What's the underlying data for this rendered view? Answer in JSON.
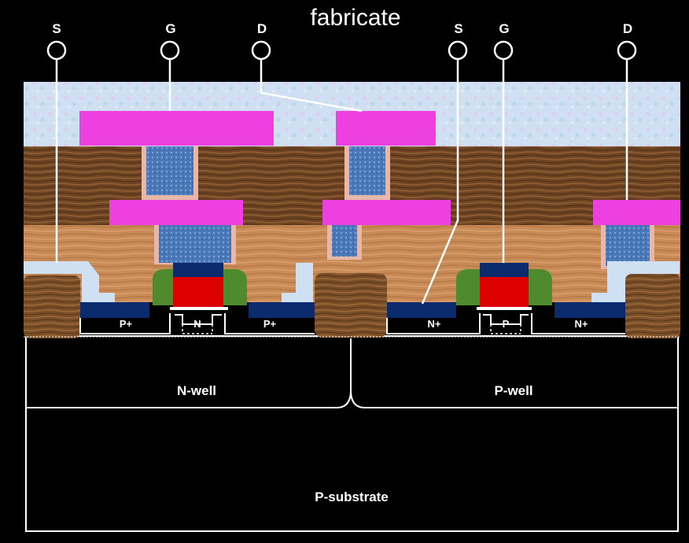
{
  "title": "fabricate",
  "terminals": {
    "left_source": "S",
    "left_gate": "G",
    "left_drain": "D",
    "right_source": "S",
    "right_gate": "G",
    "right_drain": "D"
  },
  "regions": {
    "left_p1": "P+",
    "left_n": "N",
    "left_p2": "P+",
    "right_n1": "N+",
    "right_p": "P",
    "right_n2": "N+"
  },
  "wells": {
    "n_well": "N-well",
    "p_well": "P-well",
    "substrate": "P-substrate"
  },
  "colors": {
    "background": "#000000",
    "metal": "#ee3fe0",
    "via": "#4a78b8",
    "dielectric_top": "#cfe0f2",
    "dielectric_mid": "#6e4423",
    "dielectric_low": "#c88a57",
    "oxide_isolation": "#7a4e28",
    "gate_poly": "#dd0000",
    "gate_cap": "#0c2a6e",
    "spacer": "#4f8a2e",
    "diffusion": "#0c2a6e",
    "wire": "#ffffff"
  }
}
